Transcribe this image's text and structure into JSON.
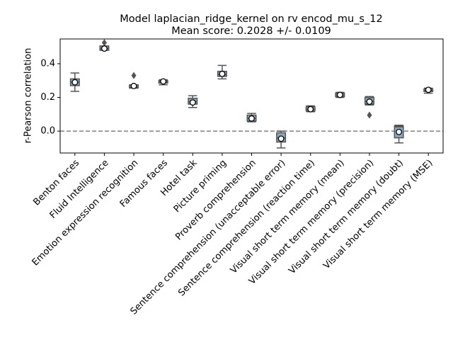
{
  "chart_data": {
    "type": "box",
    "title": "Model laplacian_ridge_kernel on rv encod_mu_s_12",
    "subtitle": "Mean score: 0.2028 +/- 0.0109",
    "y_label": "r-Pearson correlation",
    "categories": [
      "Benton faces",
      "Fluid Intelligence",
      "Emotion expression recognition",
      "Famous faces",
      "Hotel task",
      "Picture priming",
      "Proverb comprehension",
      "Sentence comprehension (unacceptable error)",
      "Sentence comprehension (reaction time)",
      "Visual short term memory (mean)",
      "Visual short term memory (precision)",
      "Visual short term memory (doubt)",
      "Visual short term memory (MSE)"
    ],
    "whislo": [
      0.236,
      0.48,
      0.255,
      0.275,
      0.14,
      0.31,
      0.055,
      -0.1,
      0.115,
      0.2,
      0.155,
      -0.07,
      0.225
    ],
    "q1": [
      0.27,
      0.48,
      0.257,
      0.285,
      0.16,
      0.325,
      0.06,
      -0.065,
      0.12,
      0.205,
      0.16,
      -0.04,
      0.235
    ],
    "median": [
      0.29,
      0.49,
      0.26,
      0.293,
      0.175,
      0.335,
      0.075,
      -0.04,
      0.13,
      0.215,
      0.175,
      0.025,
      0.24
    ],
    "q3": [
      0.31,
      0.505,
      0.274,
      0.3,
      0.195,
      0.355,
      0.095,
      -0.01,
      0.145,
      0.225,
      0.2,
      0.03,
      0.25
    ],
    "whishi": [
      0.345,
      0.505,
      0.275,
      0.305,
      0.21,
      0.39,
      0.105,
      0.0,
      0.15,
      0.23,
      0.205,
      0.035,
      0.255
    ],
    "mean": [
      0.29,
      0.49,
      0.268,
      0.295,
      0.17,
      0.34,
      0.075,
      -0.045,
      0.13,
      0.215,
      0.175,
      -0.005,
      0.245
    ],
    "outliers": [
      [],
      [
        0.525
      ],
      [
        0.33
      ],
      [],
      [],
      [],
      [],
      [],
      [],
      [],
      [
        0.095
      ],
      [],
      []
    ],
    "color": "#88a9ba",
    "hline": 0,
    "ylim": [
      -0.13,
      0.547
    ],
    "yticks": [
      {
        "value": 0,
        "label": "0.0"
      },
      0.2,
      0.4
    ]
  }
}
